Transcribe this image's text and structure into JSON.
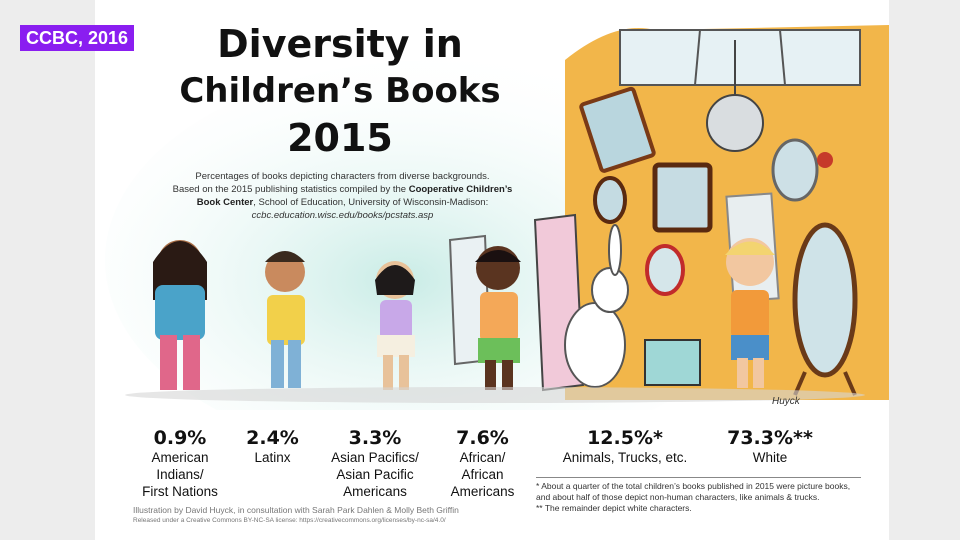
{
  "badge": "CCBC, 2016",
  "title": {
    "line1": "Diversity in",
    "line2": "Children’s Books",
    "line3": "2015"
  },
  "caption": {
    "line1": "Percentages of books depicting characters from diverse backgrounds.",
    "line2_pre": "Based on the 2015 publishing statistics compiled by the ",
    "line2_bold": "Cooperative Children’s",
    "line3_bold": "Book Center",
    "line3_post": ", School of Education, University of Wisconsin-Madison:",
    "url": "ccbc.education.wisc.edu/books/pcstats.asp"
  },
  "chart_data": {
    "type": "bar",
    "categories": [
      "American Indians/ First Nations",
      "Latinx",
      "Asian Pacifics/ Asian Pacific Americans",
      "African/ African Americans",
      "Animals, Trucks, etc.",
      "White"
    ],
    "values": [
      0.9,
      2.4,
      3.3,
      7.6,
      12.5,
      73.3
    ],
    "unit": "%"
  },
  "stats": [
    {
      "pct": "0.9%",
      "label_lines": [
        "American",
        "Indians/",
        "First Nations"
      ]
    },
    {
      "pct": "2.4%",
      "label_lines": [
        "Latinx"
      ]
    },
    {
      "pct": "3.3%",
      "label_lines": [
        "Asian Pacifics/",
        "Asian Pacific",
        "Americans"
      ]
    },
    {
      "pct": "7.6%",
      "label_lines": [
        "African/",
        "African",
        "Americans"
      ]
    },
    {
      "pct": "12.5%*",
      "label_lines": [
        "Animals, Trucks, etc."
      ]
    },
    {
      "pct": "73.3%**",
      "label_lines": [
        "White"
      ]
    }
  ],
  "footnotes": {
    "one": "* About a quarter of the total children’s books published in 2015 were picture books, and about half of those depict non-human characters, like animals & trucks.",
    "two": "** The remainder depict white characters."
  },
  "credit": "Illustration by David Huyck, in consultation with Sarah Park Dahlen & Molly Beth Griffin",
  "license": "Released under a Creative Commons BY-NC-SA license: https://creativecommons.org/licenses/by-nc-sa/4.0/",
  "signature": "Huyck",
  "colors": {
    "badge": "#8a1ef0",
    "wall": "#f0b84a",
    "wash": "#bfe3e0"
  }
}
